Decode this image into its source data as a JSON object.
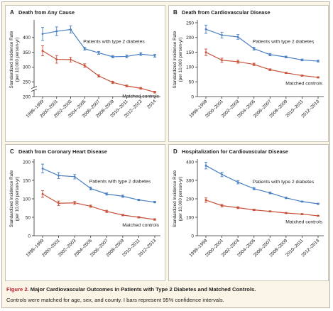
{
  "figure": {
    "caption_label": "Figure 2.",
    "caption_title": "Major Cardiovascular Outcomes in Patients with Type 2 Diabetes and Matched Controls.",
    "caption_note": "Controls were matched for age, sex, and county. I bars represent 95% confidence intervals."
  },
  "colors": {
    "diabetes": "#4a80c3",
    "controls": "#c8503a",
    "frame_bg": "#fbf5e7"
  },
  "chart_data": [
    {
      "type": "line",
      "panel_letter": "A",
      "title": "Death from Any Cause",
      "ylabel": "Standardized Incidence Rate",
      "ylabel2": "(per 10,000 person-yr)",
      "x": [
        "1998–1999",
        "2000–2001",
        "2002–2003",
        "2004–2005",
        "2006–2007",
        "2008–2009",
        "2010–2011",
        "2012–2013",
        "2014"
      ],
      "ylim": [
        200,
        450
      ],
      "yticks": [
        200,
        250,
        300,
        350,
        400
      ],
      "axis_break": true,
      "grid": false,
      "series": [
        {
          "name": "Patients with type 2 diabetes",
          "values": [
            412,
            421,
            427,
            362,
            348,
            335,
            336,
            344,
            338
          ],
          "ci_low": [
            390,
            406,
            415,
            357,
            343,
            331,
            331,
            339,
            333
          ],
          "ci_high": [
            434,
            436,
            439,
            367,
            353,
            339,
            341,
            349,
            343
          ],
          "label_pos": "above"
        },
        {
          "name": "Matched controls",
          "values": [
            355,
            326,
            325,
            305,
            270,
            248,
            236,
            228,
            215
          ],
          "ci_low": [
            338,
            313,
            317,
            299,
            266,
            244,
            233,
            225,
            212
          ],
          "ci_high": [
            372,
            339,
            333,
            311,
            274,
            252,
            239,
            231,
            218
          ],
          "label_pos": "below"
        }
      ]
    },
    {
      "type": "line",
      "panel_letter": "B",
      "title": "Death from Cardiovascular Disease",
      "ylabel": "Standardized Incidence Rate",
      "ylabel2": "(per 10,000 person-yr)",
      "x": [
        "1998–1999",
        "2000–2001",
        "2002–2003",
        "2004–2005",
        "2006–2007",
        "2008–2009",
        "2010–2011",
        "2012–2013"
      ],
      "ylim": [
        0,
        250
      ],
      "yticks": [
        0,
        50,
        100,
        150,
        200,
        250
      ],
      "axis_break": false,
      "grid": false,
      "series": [
        {
          "name": "Patients with type 2 diabetes",
          "values": [
            228,
            208,
            202,
            162,
            142,
            134,
            124,
            120
          ],
          "ci_low": [
            214,
            198,
            194,
            157,
            138,
            131,
            121,
            117
          ],
          "ci_high": [
            242,
            218,
            210,
            167,
            146,
            137,
            127,
            123
          ],
          "label_pos": "above"
        },
        {
          "name": "Matched controls",
          "values": [
            150,
            123,
            118,
            109,
            91,
            80,
            71,
            65
          ],
          "ci_low": [
            139,
            116,
            113,
            105,
            88,
            78,
            69,
            63
          ],
          "ci_high": [
            161,
            130,
            123,
            113,
            94,
            82,
            73,
            67
          ],
          "label_pos": "below"
        }
      ]
    },
    {
      "type": "line",
      "panel_letter": "C",
      "title": "Death from Coronary Heart Disease",
      "ylabel": "Standardized Incidence Rate",
      "ylabel2": "(per 10,000 person-yr)",
      "x": [
        "1998–1999",
        "2000–2001",
        "2002–2003",
        "2004–2005",
        "2006–2007",
        "2008–2009",
        "2010–2011",
        "2012–2013"
      ],
      "ylim": [
        0,
        200
      ],
      "yticks": [
        0,
        50,
        100,
        150,
        200
      ],
      "axis_break": false,
      "grid": false,
      "series": [
        {
          "name": "Patients with type 2 diabetes",
          "values": [
            182,
            163,
            160,
            128,
            113,
            107,
            97,
            91
          ],
          "ci_low": [
            170,
            155,
            154,
            124,
            110,
            104,
            95,
            89
          ],
          "ci_high": [
            194,
            171,
            166,
            132,
            116,
            110,
            99,
            93
          ],
          "label_pos": "above"
        },
        {
          "name": "Matched controls",
          "values": [
            113,
            88,
            89,
            80,
            66,
            56,
            50,
            44
          ],
          "ci_low": [
            104,
            82,
            85,
            77,
            63,
            54,
            48,
            42
          ],
          "ci_high": [
            122,
            94,
            93,
            83,
            69,
            58,
            52,
            46
          ],
          "label_pos": "below"
        }
      ]
    },
    {
      "type": "line",
      "panel_letter": "D",
      "title": "Hospitalization for Cardiovascular Disease",
      "ylabel": "Standardized Incidence Rate",
      "ylabel2": "(per 10,000 person-yr)",
      "x": [
        "1998–1999",
        "2000–2001",
        "2002–2003",
        "2004–2005",
        "2006–2007",
        "2008–2009",
        "2010–2011",
        "2012–2013"
      ],
      "ylim": [
        0,
        400
      ],
      "yticks": [
        0,
        100,
        200,
        300,
        400
      ],
      "axis_break": false,
      "grid": false,
      "series": [
        {
          "name": "Patients with type 2 diabetes",
          "values": [
            380,
            332,
            290,
            255,
            232,
            205,
            185,
            173
          ],
          "ci_low": [
            362,
            320,
            281,
            249,
            227,
            201,
            182,
            170
          ],
          "ci_high": [
            398,
            344,
            299,
            261,
            237,
            209,
            188,
            176
          ],
          "label_pos": "above"
        },
        {
          "name": "Matched controls",
          "values": [
            193,
            163,
            152,
            140,
            132,
            123,
            117,
            108
          ],
          "ci_low": [
            181,
            156,
            147,
            136,
            129,
            120,
            114,
            106
          ],
          "ci_high": [
            205,
            170,
            157,
            144,
            135,
            126,
            120,
            110
          ],
          "label_pos": "below"
        }
      ]
    }
  ]
}
